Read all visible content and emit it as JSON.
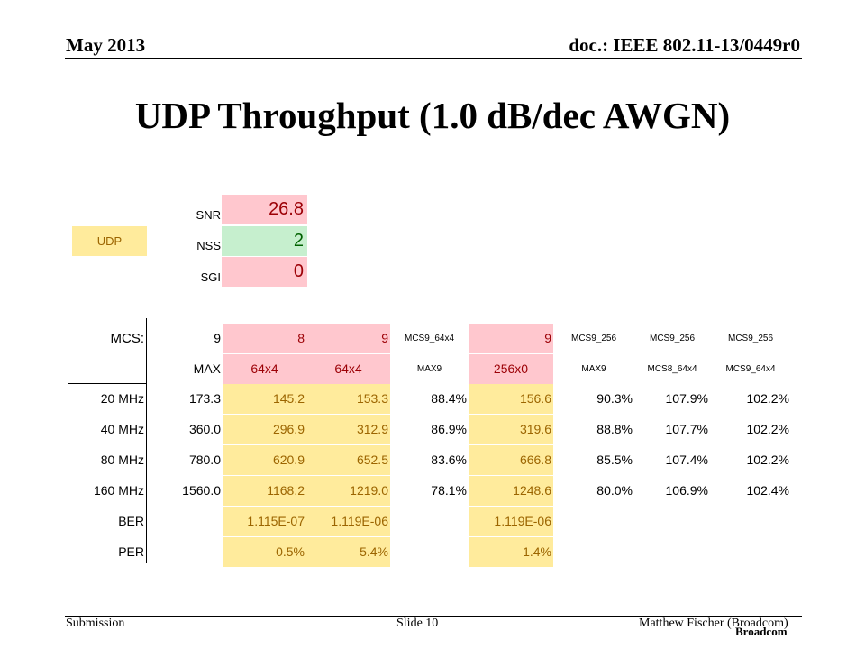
{
  "header": {
    "date": "May 2013",
    "doc": "doc.: IEEE 802.11-13/0449r0"
  },
  "title": "UDP Throughput (1.0 dB/dec AWGN)",
  "footer": {
    "left": "Submission",
    "slide": "Slide 10",
    "author": "Matthew Fischer (Broadcom)",
    "brand": "Broadcom"
  },
  "params": {
    "udp": "UDP",
    "snr_label": "SNR",
    "snr_value": "26.8",
    "nss_label": "NSS",
    "nss_value": "2",
    "sgi_label": "SGI",
    "sgi_value": "0"
  },
  "table": {
    "mcs_label": "MCS:",
    "mcs": [
      "9",
      "8",
      "9",
      "MCS9_64x4",
      "9",
      "MCS9_256",
      "MCS9_256",
      "MCS9_256"
    ],
    "sub": [
      "MAX",
      "64x4",
      "64x4",
      "MAX9",
      "256x0",
      "MAX9",
      "MCS8_64x4",
      "MCS9_64x4"
    ],
    "rows": [
      {
        "label": "20 MHz",
        "values": [
          "173.3",
          "145.2",
          "153.3",
          "88.4%",
          "156.6",
          "90.3%",
          "107.9%",
          "102.2%"
        ]
      },
      {
        "label": "40 MHz",
        "values": [
          "360.0",
          "296.9",
          "312.9",
          "86.9%",
          "319.6",
          "88.8%",
          "107.7%",
          "102.2%"
        ]
      },
      {
        "label": "80 MHz",
        "values": [
          "780.0",
          "620.9",
          "652.5",
          "83.6%",
          "666.8",
          "85.5%",
          "107.4%",
          "102.2%"
        ]
      },
      {
        "label": "160 MHz",
        "values": [
          "1560.0",
          "1168.2",
          "1219.0",
          "78.1%",
          "1248.6",
          "80.0%",
          "106.9%",
          "102.4%"
        ]
      },
      {
        "label": "BER",
        "values": [
          "",
          "1.115E-07",
          "1.119E-06",
          "",
          "1.119E-06",
          "",
          "",
          ""
        ]
      },
      {
        "label": "PER",
        "values": [
          "",
          "0.5%",
          "5.4%",
          "",
          "1.4%",
          "",
          "",
          ""
        ]
      }
    ]
  },
  "colors": {
    "pink_bg": "#ffc7ce",
    "pink_fg": "#9c0006",
    "green_bg": "#c6efce",
    "green_fg": "#006100",
    "yellow_bg": "#ffeb9c",
    "yellow_fg": "#9c6500"
  }
}
